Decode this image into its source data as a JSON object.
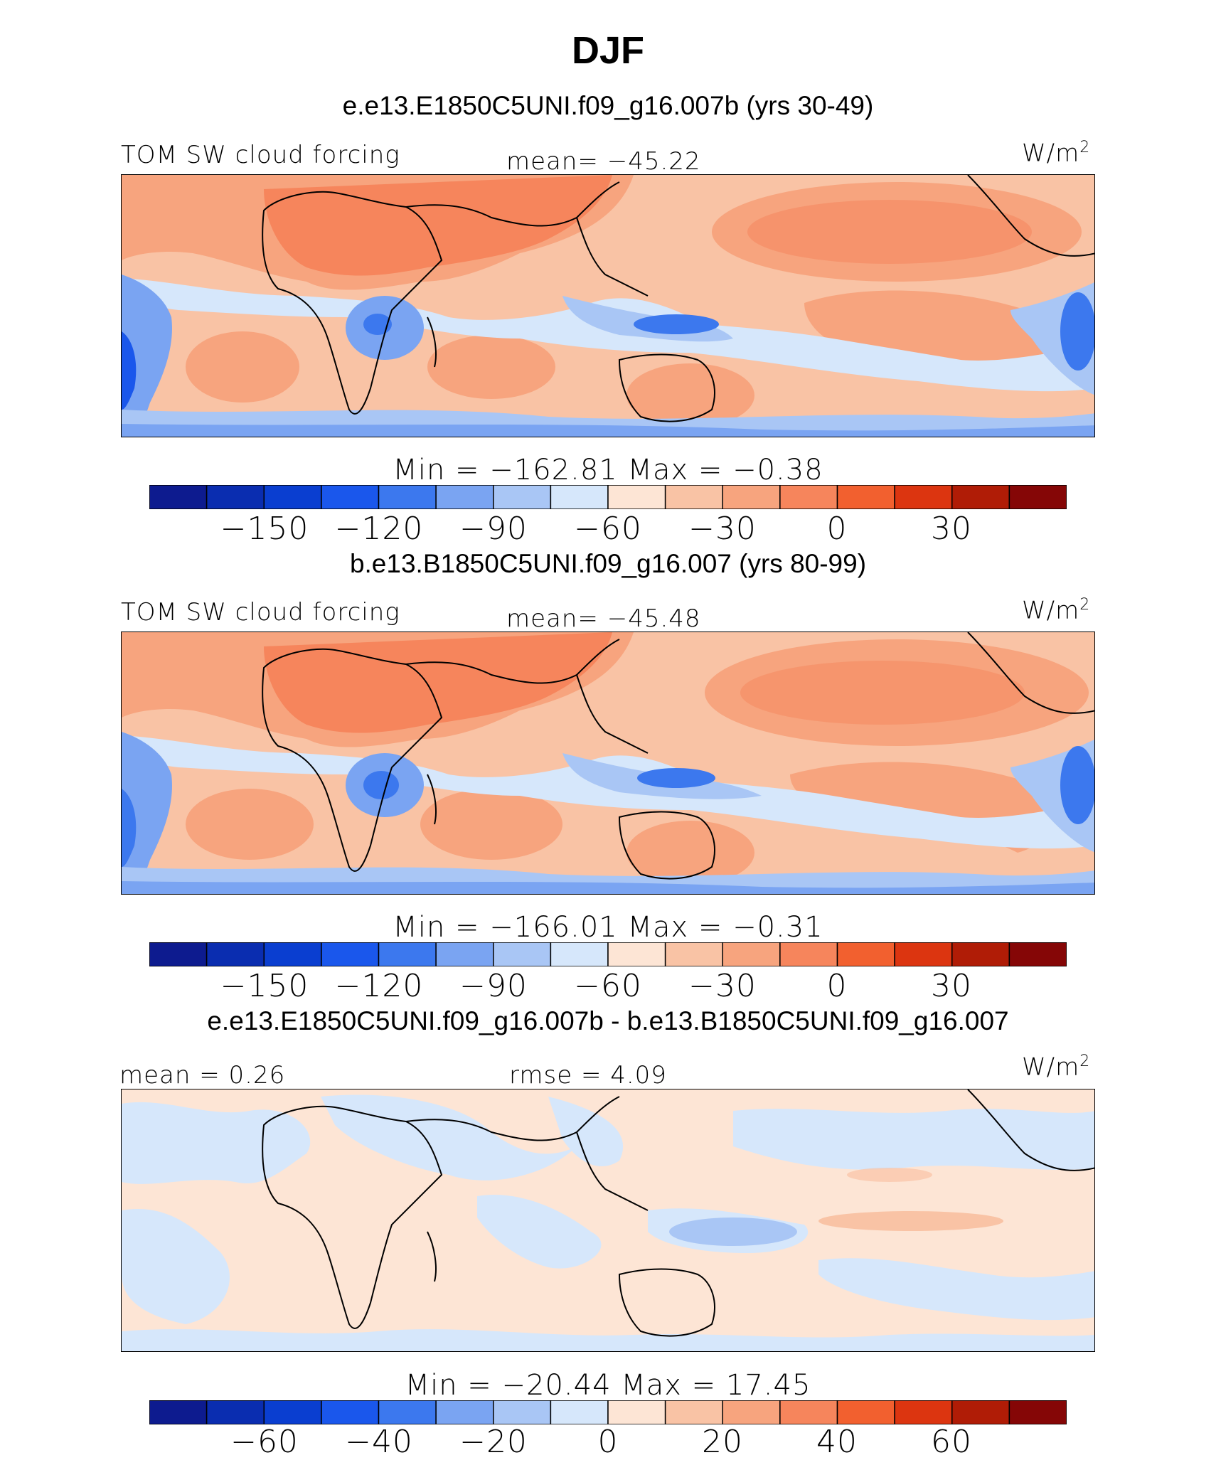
{
  "title": "DJF",
  "colormap": [
    "#0d1b8f",
    "#0a2db0",
    "#0a3ed0",
    "#1a57ec",
    "#3c78ee",
    "#7aa4f2",
    "#a9c6f5",
    "#d6e7fb",
    "#fde5d5",
    "#f9c3a5",
    "#f7a47e",
    "#f6855c",
    "#f2602f",
    "#dc3510",
    "#b01c06",
    "#850606"
  ],
  "panels": [
    {
      "case_title": "e.e13.E1850C5UNI.f09_g16.007b (yrs 30-49)",
      "variable": "TOM SW cloud forcing",
      "stat": "mean=  −45.22",
      "units": "W/m",
      "units_exp": "2",
      "minmax": "Min  =  −162.81  Max  =   −0.38",
      "ticks": [
        "−150",
        "−120",
        "−90",
        "−60",
        "−30",
        "0",
        "30"
      ]
    },
    {
      "case_title": "b.e13.B1850C5UNI.f09_g16.007 (yrs 80-99)",
      "variable": "TOM SW cloud forcing",
      "stat": "mean=  −45.48",
      "units": "W/m",
      "units_exp": "2",
      "minmax": "Min  =  −166.01  Max  =   −0.31",
      "ticks": [
        "−150",
        "−120",
        "−90",
        "−60",
        "−30",
        "0",
        "30"
      ]
    },
    {
      "case_title": "e.e13.E1850C5UNI.f09_g16.007b - b.e13.B1850C5UNI.f09_g16.007",
      "variable": "mean  =    0.26",
      "stat": "rmse  =    4.09",
      "units": "W/m",
      "units_exp": "2",
      "minmax": "Min  =  −20.44  Max  =   17.45",
      "ticks": [
        "−60",
        "−40",
        "−20",
        "0",
        "20",
        "40",
        "60"
      ]
    }
  ]
}
